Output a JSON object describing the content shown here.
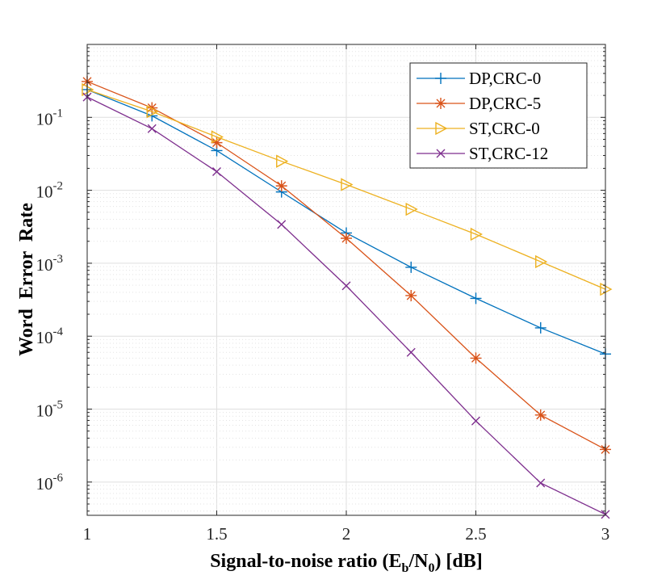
{
  "chart_data": {
    "type": "line",
    "yscale": "log",
    "xlabel": "Signal-to-noise ratio (E_b/N_0) [dB]",
    "xlabel_parts": {
      "pre": "Signal-to-noise ratio (E",
      "sub1": "b",
      "mid": "/N",
      "sub2": "0",
      "post": ") [dB]"
    },
    "ylabel": "Word  Error  Rate",
    "xlim": [
      1,
      3
    ],
    "ylim": [
      3.5e-07,
      1
    ],
    "x_ticks": [
      {
        "value": 1,
        "label": "1"
      },
      {
        "value": 1.5,
        "label": "1.5"
      },
      {
        "value": 2,
        "label": "2"
      },
      {
        "value": 2.5,
        "label": "2.5"
      },
      {
        "value": 3,
        "label": "3"
      }
    ],
    "y_ticks": [
      {
        "value": 0.1,
        "base": "10",
        "exp": "-1"
      },
      {
        "value": 0.01,
        "base": "10",
        "exp": "-2"
      },
      {
        "value": 0.001,
        "base": "10",
        "exp": "-3"
      },
      {
        "value": 0.0001,
        "base": "10",
        "exp": "-4"
      },
      {
        "value": 1e-05,
        "base": "10",
        "exp": "-5"
      },
      {
        "value": 1e-06,
        "base": "10",
        "exp": "-6"
      }
    ],
    "grid": true,
    "legend_position": "top-right",
    "x": [
      1,
      1.25,
      1.5,
      1.75,
      2,
      2.25,
      2.5,
      2.75,
      3
    ],
    "series": [
      {
        "name": "DP,CRC-0",
        "color": "#0072BD",
        "marker": "plus",
        "values": [
          0.24,
          0.105,
          0.035,
          0.0095,
          0.0026,
          0.00088,
          0.00033,
          0.00013,
          5.7e-05
        ]
      },
      {
        "name": "DP,CRC-5",
        "color": "#D95319",
        "marker": "asterisk",
        "values": [
          0.31,
          0.135,
          0.045,
          0.0115,
          0.0022,
          0.00036,
          5e-05,
          8.3e-06,
          2.8e-06
        ]
      },
      {
        "name": "ST,CRC-0",
        "color": "#EDB120",
        "marker": "triangle-right",
        "values": [
          0.24,
          0.12,
          0.054,
          0.025,
          0.012,
          0.0055,
          0.0025,
          0.00105,
          0.00044
        ]
      },
      {
        "name": "ST,CRC-12",
        "color": "#7E2F8E",
        "marker": "x",
        "values": [
          0.19,
          0.07,
          0.018,
          0.0034,
          0.00049,
          6e-05,
          6.9e-06,
          9.7e-07,
          3.6e-07
        ]
      }
    ]
  }
}
